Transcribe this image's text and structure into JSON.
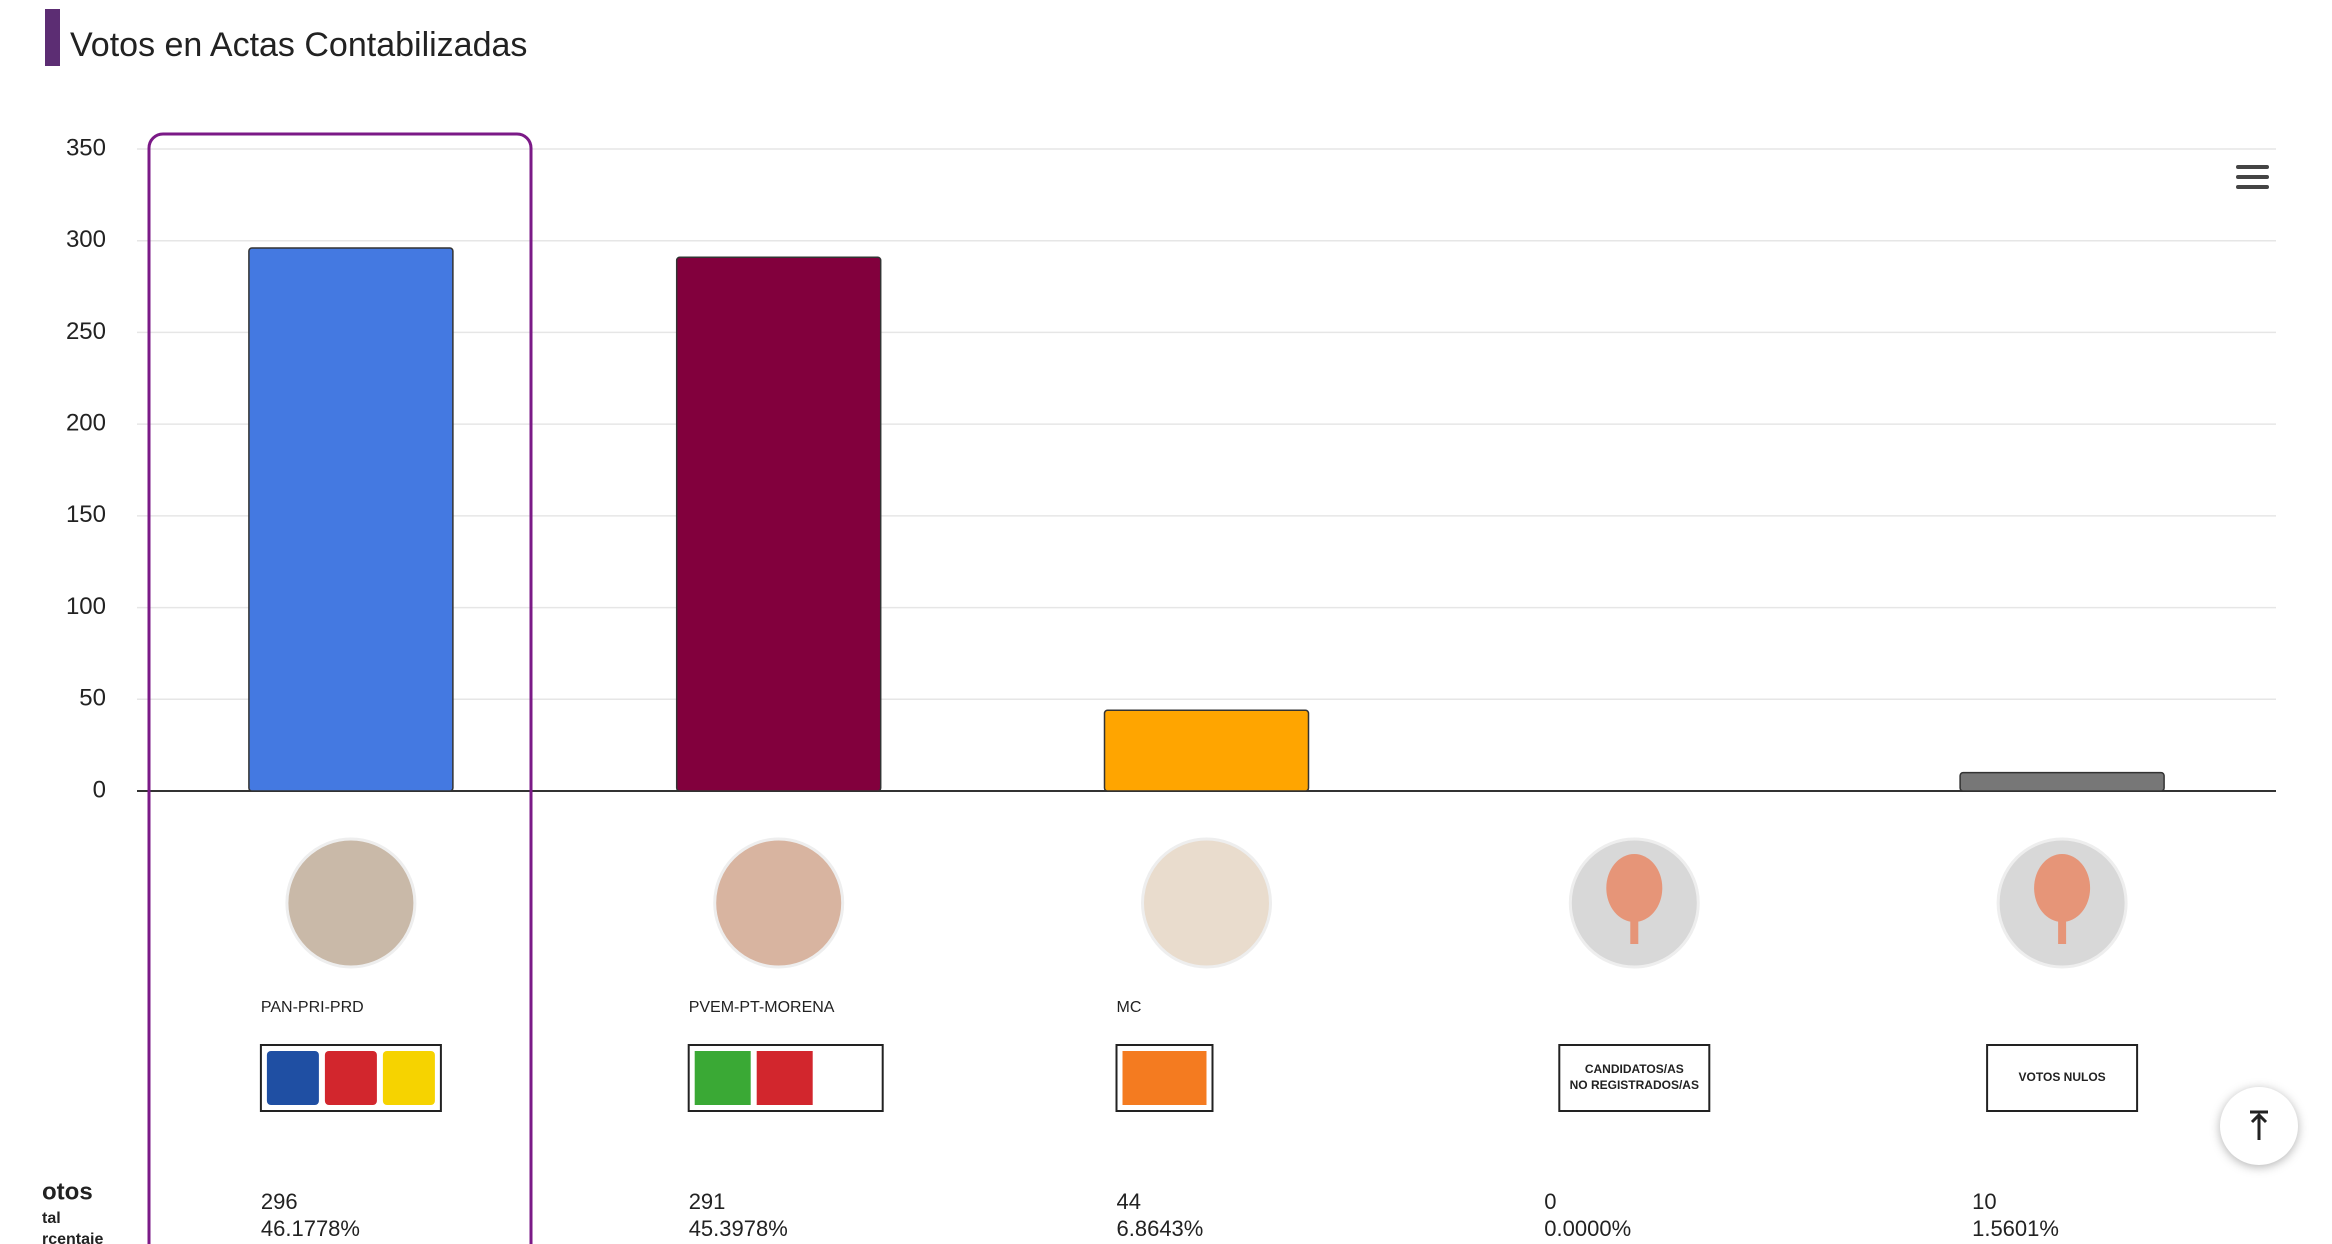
{
  "chart_data": {
    "type": "bar",
    "title": "Votos en Actas Contabilizadas",
    "categories": [
      "PAN-PRI-PRD",
      "PVEM-PT-MORENA",
      "MC",
      null,
      null
    ],
    "values": [
      296,
      291,
      44,
      0,
      10
    ],
    "colors": [
      "#4479e1",
      "#82003d",
      "#ffa500",
      "#999999",
      "#777777"
    ],
    "percentages": [
      46.1778,
      45.3978,
      6.8643,
      0.0,
      1.5601
    ],
    "percentage_labels": [
      "46.1778%",
      "45.3978%",
      "6.8643%",
      "0.0000%",
      "1.5601%"
    ],
    "logo_lines": [
      [],
      [],
      [],
      [
        "CANDIDATOS/AS",
        "NO REGISTRADOS/AS"
      ],
      [
        "VOTOS NULOS"
      ]
    ],
    "row_labels": [
      "otos",
      "tal",
      "rcentaje"
    ],
    "ylim": [
      0,
      350
    ],
    "yticks": [
      0,
      50,
      100,
      150,
      200,
      250,
      300,
      350
    ],
    "grid": true
  }
}
